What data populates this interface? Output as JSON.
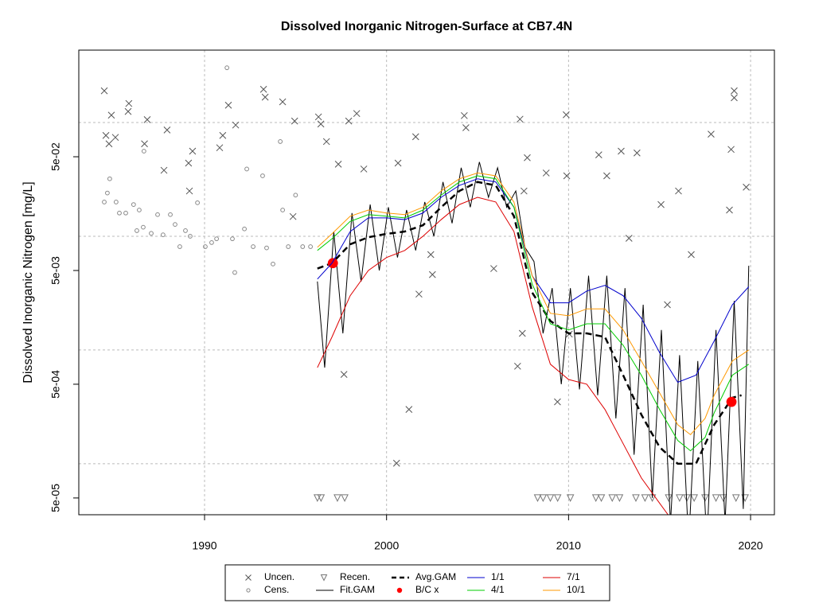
{
  "chart_data": {
    "type": "scatter-line",
    "title": "Dissolved Inorganic Nitrogen-Surface at CB7.4N",
    "y_label": "Dissolved Inorganic Nitrogen [mg/L]",
    "xlim": [
      1983.09,
      2021.31
    ],
    "ylim": [
      3.56e-05,
      0.433
    ],
    "log_y": true,
    "xticks": [
      1990,
      2000,
      2010,
      2020
    ],
    "yticks": [
      {
        "value": 5e-05,
        "label": "5e-05"
      },
      {
        "value": 0.0005,
        "label": "5e-04"
      },
      {
        "value": 0.005,
        "label": "5e-03"
      },
      {
        "value": 0.05,
        "label": "5e-02"
      }
    ],
    "ygrid": [
      0.0001,
      0.001,
      0.01,
      0.1
    ],
    "grid": true,
    "legend": "bottom",
    "series": [
      {
        "name": "Uncen.",
        "color": "#555555",
        "marker": "x",
        "x": [
          1984.49,
          1984.58,
          1984.75,
          1984.88,
          1985.1,
          1985.84,
          1985.8,
          1986.85,
          1986.7,
          1987.94,
          1987.77,
          1989.17,
          1989.34,
          1989.12,
          1990.83,
          1991.31,
          1991.71,
          1991.0,
          1993.24,
          1993.33,
          1994.29,
          1994.95,
          1994.86,
          1996.26,
          1996.39,
          1996.7,
          1997.35,
          1997.92,
          1997.66,
          1998.36,
          1998.75,
          2000.63,
          2000.55,
          2001.23,
          2001.6,
          2002.43,
          2002.52,
          2001.78,
          2004.27,
          2004.36,
          2005.89,
          2007.33,
          2007.73,
          2007.55,
          2007.2,
          2007.46,
          2008.77,
          2009.39,
          2009.87,
          2009.9,
          2010.04,
          2011.66,
          2012.1,
          2012.89,
          2013.76,
          2013.32,
          2015.08,
          2016.04,
          2016.74,
          2015.43,
          2017.83,
          2018.93,
          2019.1,
          2019.1,
          2018.84,
          2019.76
        ],
        "values": [
          0.19,
          0.077,
          0.065,
          0.116,
          0.074,
          0.147,
          0.125,
          0.106,
          0.065,
          0.086,
          0.038,
          0.025,
          0.056,
          0.044,
          0.06,
          0.142,
          0.095,
          0.077,
          0.196,
          0.167,
          0.152,
          0.103,
          0.0149,
          0.112,
          0.097,
          0.068,
          0.043,
          0.103,
          0.00061,
          0.12,
          0.039,
          0.044,
          0.000101,
          0.0003,
          0.075,
          0.0069,
          0.0046,
          0.0031,
          0.115,
          0.09,
          0.0052,
          0.107,
          0.049,
          0.025,
          0.00072,
          0.0014,
          0.036,
          0.00035,
          0.117,
          0.034,
          0.00138,
          0.052,
          0.034,
          0.056,
          0.054,
          0.0096,
          0.019,
          0.025,
          0.0069,
          0.0025,
          0.079,
          0.058,
          0.19,
          0.165,
          0.017,
          0.027
        ]
      },
      {
        "name": "Cens.",
        "color": "#888888",
        "marker": "circle",
        "x": [
          1984.49,
          1984.66,
          1984.79,
          1985.14,
          1985.32,
          1985.67,
          1986.1,
          1986.28,
          1986.41,
          1986.63,
          1986.67,
          1987.07,
          1987.42,
          1987.72,
          1988.12,
          1988.38,
          1988.64,
          1988.95,
          1989.21,
          1989.61,
          1990.04,
          1990.39,
          1990.66,
          1991.23,
          1991.53,
          1991.66,
          1992.19,
          1992.32,
          1992.67,
          1993.19,
          1993.41,
          1993.76,
          1994.16,
          1994.29,
          1994.6,
          1995.0,
          1995.39,
          1995.82
        ],
        "values": [
          0.02,
          0.024,
          0.032,
          0.02,
          0.016,
          0.016,
          0.019,
          0.0112,
          0.017,
          0.012,
          0.056,
          0.0106,
          0.0155,
          0.0103,
          0.0155,
          0.0127,
          0.0081,
          0.0112,
          0.01,
          0.0197,
          0.0081,
          0.0088,
          0.0095,
          0.303,
          0.0095,
          0.0048,
          0.0116,
          0.039,
          0.0081,
          0.034,
          0.0079,
          0.0057,
          0.068,
          0.017,
          0.0081,
          0.023,
          0.0081,
          0.0081
        ]
      },
      {
        "name": "Recen.",
        "color": "#777777",
        "marker": "triangle",
        "x": [
          1996.2,
          1996.4,
          1997.3,
          1997.7,
          2008.3,
          2008.6,
          2009.0,
          2009.4,
          2010.1,
          2011.5,
          2011.8,
          2012.4,
          2012.8,
          2013.7,
          2014.2,
          2014.6,
          2015.5,
          2016.1,
          2016.5,
          2016.9,
          2017.5,
          2018.1,
          2018.5,
          2019.2,
          2019.7
        ],
        "values": [
          5e-05,
          5e-05,
          5e-05,
          5e-05,
          5e-05,
          5e-05,
          5e-05,
          5e-05,
          5e-05,
          5e-05,
          5e-05,
          5e-05,
          5e-05,
          5e-05,
          5e-05,
          5e-05,
          5e-05,
          5e-05,
          5e-05,
          5e-05,
          5e-05,
          5e-05,
          5e-05,
          5e-05,
          5e-05
        ]
      },
      {
        "name": "Fit.GAM",
        "color": "#000000",
        "line": "solid",
        "width": 1,
        "x": [
          1996.2,
          1996.6,
          1997.1,
          1997.6,
          1998.1,
          1998.6,
          1999.1,
          1999.6,
          2000.1,
          2000.6,
          2001.1,
          2001.6,
          2002.1,
          2002.6,
          2003.1,
          2003.6,
          2004.1,
          2004.6,
          2005.1,
          2005.6,
          2006.1,
          2006.6,
          2007.1,
          2007.6,
          2008.1,
          2008.6,
          2009.1,
          2009.6,
          2010.1,
          2010.6,
          2011.1,
          2011.6,
          2012.1,
          2012.6,
          2013.1,
          2013.6,
          2014.1,
          2014.6,
          2015.1,
          2015.6,
          2016.1,
          2016.6,
          2017.1,
          2017.6,
          2018.1,
          2018.6,
          2019.1,
          2019.6,
          2019.9
        ],
        "values": [
          0.004,
          0.0007,
          0.011,
          0.0014,
          0.016,
          0.004,
          0.019,
          0.005,
          0.018,
          0.0065,
          0.017,
          0.0075,
          0.02,
          0.01,
          0.03,
          0.013,
          0.04,
          0.018,
          0.045,
          0.022,
          0.04,
          0.018,
          0.025,
          0.008,
          0.006,
          0.0014,
          0.0035,
          0.0005,
          0.0035,
          0.00045,
          0.0045,
          0.0004,
          0.0045,
          0.00025,
          0.0035,
          0.00012,
          0.0025,
          5e-05,
          0.0015,
          3e-05,
          0.0009,
          2e-05,
          0.0008,
          2e-05,
          0.0015,
          3e-05,
          0.0027,
          4e-05,
          0.0055
        ]
      },
      {
        "name": "Avg.GAM",
        "color": "#000000",
        "line": "dashed",
        "width": 2.5,
        "x": [
          1996.2,
          1997,
          1998,
          1999,
          2000,
          2001,
          2002,
          2003,
          2004,
          2005,
          2006,
          2007,
          2008,
          2009,
          2010,
          2011,
          2012,
          2013,
          2014,
          2015,
          2016,
          2017,
          2018,
          2019,
          2019.5
        ],
        "values": [
          0.0052,
          0.0058,
          0.0085,
          0.0098,
          0.0105,
          0.011,
          0.0125,
          0.018,
          0.025,
          0.03,
          0.028,
          0.015,
          0.0032,
          0.0018,
          0.0014,
          0.0014,
          0.0013,
          0.0006,
          0.00027,
          0.00014,
          0.0001,
          0.0001,
          0.00022,
          0.00038,
          0.0004
        ]
      },
      {
        "name": "B/C x",
        "color": "#ff0000",
        "marker": "dot",
        "x": [
          1997.05,
          2018.95
        ],
        "values": [
          0.0058,
          0.00035
        ]
      },
      {
        "name": "1/1",
        "color": "#0000cc",
        "line": "solid",
        "width": 1,
        "x": [
          1996.2,
          1997,
          1998,
          1999,
          2000,
          2001,
          2002,
          2003,
          2004,
          2005,
          2006,
          2007,
          2008,
          2009,
          2010,
          2011,
          2012,
          2013,
          2014,
          2015,
          2016,
          2017,
          2018,
          2019,
          2019.9
        ],
        "values": [
          0.0042,
          0.0058,
          0.011,
          0.0145,
          0.0145,
          0.014,
          0.016,
          0.022,
          0.028,
          0.032,
          0.03,
          0.018,
          0.0045,
          0.0026,
          0.0026,
          0.0033,
          0.0037,
          0.003,
          0.0019,
          0.00095,
          0.00052,
          0.0006,
          0.0012,
          0.0025,
          0.0036
        ]
      },
      {
        "name": "4/1",
        "color": "#00cc00",
        "line": "solid",
        "width": 1,
        "x": [
          1996.2,
          1997,
          1998,
          1999,
          2000,
          2001,
          2002,
          2003,
          2004,
          2005,
          2006,
          2007,
          2008,
          2009,
          2010,
          2011,
          2012,
          2013,
          2014,
          2015,
          2016,
          2016.7,
          2017.5,
          2018,
          2019,
          2019.9
        ],
        "values": [
          0.0075,
          0.0095,
          0.0135,
          0.0155,
          0.015,
          0.0145,
          0.017,
          0.023,
          0.03,
          0.034,
          0.032,
          0.018,
          0.0038,
          0.0017,
          0.0015,
          0.0017,
          0.0017,
          0.0011,
          0.0006,
          0.0003,
          0.00016,
          0.00013,
          0.00017,
          0.00028,
          0.0006,
          0.00075
        ]
      },
      {
        "name": "7/1",
        "color": "#dd0000",
        "line": "solid",
        "width": 1,
        "x": [
          1996.2,
          1997,
          1998,
          1999,
          2000,
          2001,
          2002,
          2003,
          2004,
          2005,
          2006,
          2007,
          2008,
          2009,
          2010,
          2011,
          2012,
          2013,
          2014,
          2015,
          2015.5
        ],
        "values": [
          0.0007,
          0.0013,
          0.003,
          0.005,
          0.0065,
          0.0075,
          0.01,
          0.014,
          0.019,
          0.022,
          0.02,
          0.011,
          0.0024,
          0.00075,
          0.00055,
          0.0005,
          0.0003,
          0.00015,
          7.5e-05,
          4.5e-05,
          3.5e-05
        ]
      },
      {
        "name": "10/1",
        "color": "#ff9900",
        "line": "solid",
        "width": 1,
        "x": [
          1996.2,
          1997,
          1998,
          1999,
          2000,
          2001,
          2002,
          2003,
          2004,
          2005,
          2006,
          2007,
          2008,
          2009,
          2010,
          2011,
          2012,
          2013,
          2014,
          2015,
          2016,
          2016.7,
          2017.5,
          2018,
          2019,
          2019.9
        ],
        "values": [
          0.008,
          0.0105,
          0.015,
          0.017,
          0.016,
          0.0155,
          0.018,
          0.025,
          0.032,
          0.036,
          0.034,
          0.02,
          0.0045,
          0.0021,
          0.002,
          0.0023,
          0.0023,
          0.0015,
          0.0008,
          0.00042,
          0.00022,
          0.00018,
          0.00025,
          0.0004,
          0.0008,
          0.001
        ]
      }
    ]
  }
}
